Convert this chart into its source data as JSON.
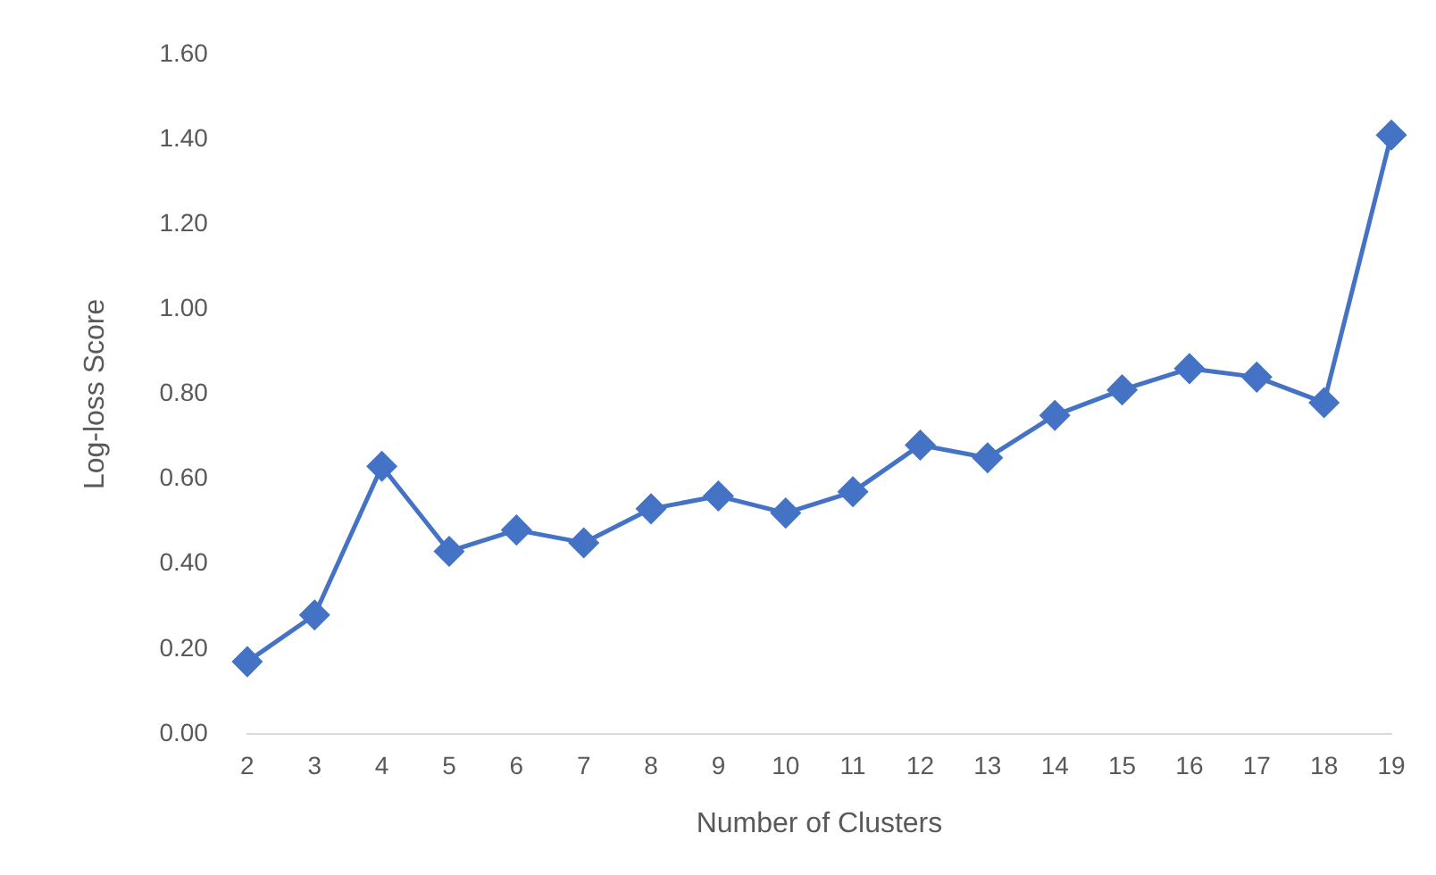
{
  "chart_data": {
    "type": "line",
    "xlabel": "Number of Clusters",
    "ylabel": "Log-loss Score",
    "categories": [
      "2",
      "3",
      "4",
      "5",
      "6",
      "7",
      "8",
      "9",
      "10",
      "11",
      "12",
      "13",
      "14",
      "15",
      "16",
      "17",
      "18",
      "19"
    ],
    "series": [
      {
        "color": "#4472c4",
        "values": [
          0.17,
          0.28,
          0.63,
          0.43,
          0.48,
          0.45,
          0.53,
          0.56,
          0.52,
          0.57,
          0.68,
          0.65,
          0.75,
          0.81,
          0.86,
          0.84,
          0.78,
          1.41
        ]
      }
    ],
    "ylim": [
      0,
      1.6
    ],
    "yticks": [
      {
        "value": 0,
        "label": "0.00"
      },
      {
        "value": 0.2,
        "label": "0.20"
      },
      {
        "value": 0.4,
        "label": "0.40"
      },
      {
        "value": 0.6,
        "label": "0.60"
      },
      {
        "value": 0.8,
        "label": "0.80"
      },
      {
        "value": 1,
        "label": "1.00"
      },
      {
        "value": 1.2,
        "label": "1.20"
      },
      {
        "value": 1.4,
        "label": "1.40"
      },
      {
        "value": 1.6,
        "label": "1.60"
      }
    ],
    "grid": false,
    "legend": false,
    "marker": "diamond",
    "line_style": "solid"
  }
}
